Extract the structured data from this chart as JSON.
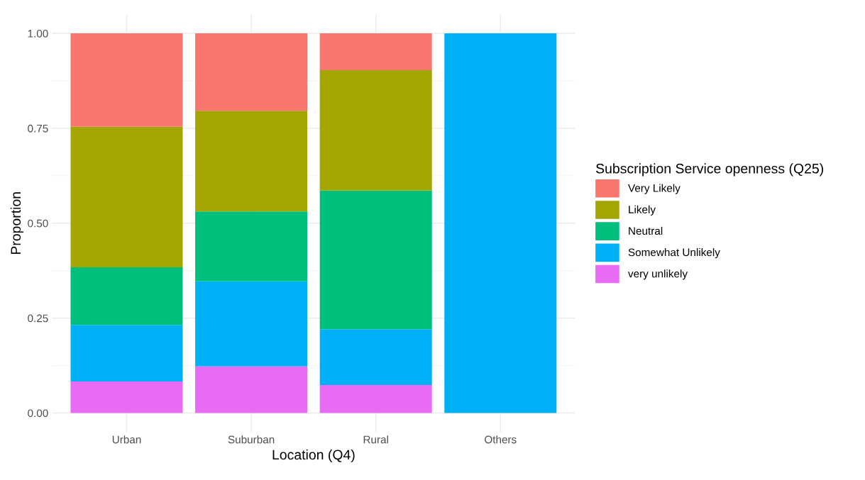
{
  "chart_data": {
    "type": "bar",
    "stacked": true,
    "xlabel": "Location (Q4)",
    "ylabel": "Proportion",
    "legend_title": "Subscription Service openness (Q25)",
    "categories": [
      "Urban",
      "Suburban",
      "Rural",
      "Others"
    ],
    "series": [
      {
        "name": "very unlikely",
        "color": "#e76bf3",
        "values": [
          0.083,
          0.123,
          0.074,
          0
        ]
      },
      {
        "name": "Somewhat Unlikely",
        "color": "#00b0f6",
        "values": [
          0.149,
          0.224,
          0.147,
          1.0
        ]
      },
      {
        "name": "Neutral",
        "color": "#00bf7d",
        "values": [
          0.152,
          0.184,
          0.365,
          0
        ]
      },
      {
        "name": "Likely",
        "color": "#a3a500",
        "values": [
          0.37,
          0.265,
          0.317,
          0
        ]
      },
      {
        "name": "Very Likely",
        "color": "#f8766d",
        "values": [
          0.246,
          0.204,
          0.097,
          0
        ]
      }
    ],
    "ylim": [
      -0.05,
      1.05
    ],
    "yticks": [
      {
        "value": 0,
        "label": "0.00"
      },
      {
        "value": 0.25,
        "label": "0.25"
      },
      {
        "value": 0.5,
        "label": "0.50"
      },
      {
        "value": 0.75,
        "label": "0.75"
      },
      {
        "value": 1.0,
        "label": "1.00"
      }
    ],
    "grid": true,
    "legend": "right"
  }
}
